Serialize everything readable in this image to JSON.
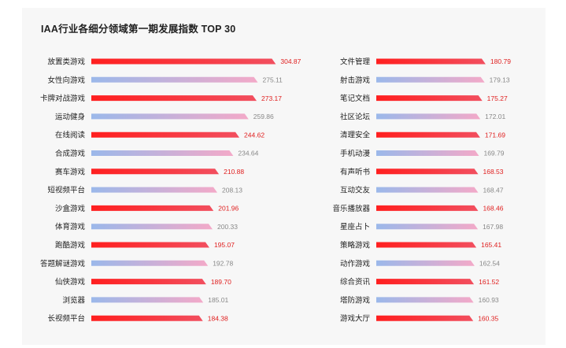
{
  "chart_data": {
    "type": "bar",
    "orientation": "horizontal",
    "title": "IAA行业各细分领域第一期发展指数 TOP 30",
    "colors": {
      "odd_start": "#ff1f1f",
      "odd_end": "#f24f5f",
      "even_start": "#9bb8ea",
      "even_end": "#f3a9c8",
      "odd_value_text": "#e02020",
      "even_value_text": "#888888"
    },
    "columns": [
      {
        "categories": [
          "放置类游戏",
          "女性向游戏",
          "卡牌对战游戏",
          "运动健身",
          "在线阅读",
          "合成游戏",
          "赛车游戏",
          "短视频平台",
          "沙盒游戏",
          "体育游戏",
          "跑酷游戏",
          "答题解谜游戏",
          "仙侠游戏",
          "浏览器",
          "长视频平台"
        ],
        "values": [
          304.87,
          275.11,
          273.17,
          259.86,
          244.62,
          234.64,
          210.88,
          208.13,
          201.96,
          200.33,
          195.07,
          192.78,
          189.7,
          185.01,
          184.38
        ],
        "value_labels": [
          "304.87",
          "275.11",
          "273.17",
          "259.86",
          "244.62",
          "234.64",
          "210.88",
          "208.13",
          "201.96",
          "200.33",
          "195.07",
          "192.78",
          "189.70",
          "185.01",
          "184.38"
        ],
        "xlim": [
          0,
          320
        ]
      },
      {
        "categories": [
          "文件管理",
          "射击游戏",
          "笔记文档",
          "社区论坛",
          "清理安全",
          "手机动漫",
          "有声听书",
          "互动交友",
          "音乐播放器",
          "星座占卜",
          "策略游戏",
          "动作游戏",
          "综合资讯",
          "塔防游戏",
          "游戏大厅"
        ],
        "values": [
          180.79,
          179.13,
          175.27,
          172.01,
          171.69,
          169.79,
          168.53,
          168.47,
          168.46,
          167.98,
          165.41,
          162.54,
          161.52,
          160.93,
          160.35
        ],
        "value_labels": [
          "180.79",
          "179.13",
          "175.27",
          "172.01",
          "171.69",
          "169.79",
          "168.53",
          "168.47",
          "168.46",
          "167.98",
          "165.41",
          "162.54",
          "161.52",
          "160.93",
          "160.35"
        ],
        "xlim": [
          0,
          190
        ]
      }
    ]
  }
}
